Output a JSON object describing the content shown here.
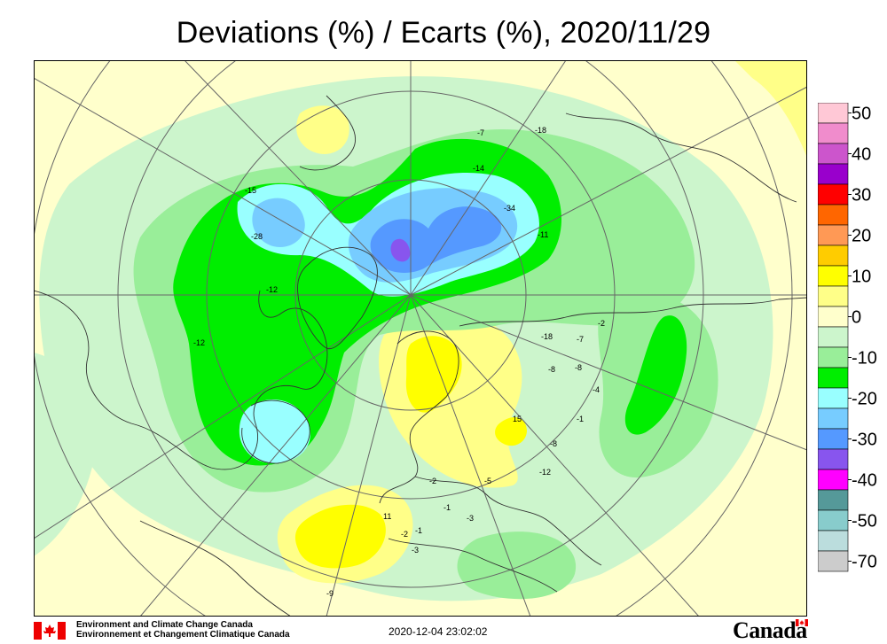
{
  "title": "Deviations (%) / Ecarts (%), 2020/11/29",
  "legend": {
    "levels": [
      {
        "label": "50",
        "color": "#ffc8d6"
      },
      {
        "label": "",
        "color": "#f08ccc"
      },
      {
        "label": "40",
        "color": "#cc55cc"
      },
      {
        "label": "",
        "color": "#9900cc"
      },
      {
        "label": "30",
        "color": "#ff0000"
      },
      {
        "label": "",
        "color": "#ff6600"
      },
      {
        "label": "20",
        "color": "#ff9955"
      },
      {
        "label": "",
        "color": "#ffcc00"
      },
      {
        "label": "10",
        "color": "#ffff00"
      },
      {
        "label": "",
        "color": "#ffff88"
      },
      {
        "label": "0",
        "color": "#ffffcc"
      },
      {
        "label": "",
        "color": "#ccf5cc"
      },
      {
        "label": "-10",
        "color": "#99ee99"
      },
      {
        "label": "",
        "color": "#00ee00"
      },
      {
        "label": "-20",
        "color": "#99ffff"
      },
      {
        "label": "",
        "color": "#77ccff"
      },
      {
        "label": "-30",
        "color": "#5599ff"
      },
      {
        "label": "",
        "color": "#8855ee"
      },
      {
        "label": "-40",
        "color": "#ff00ff"
      },
      {
        "label": "",
        "color": "#559999"
      },
      {
        "label": "-50",
        "color": "#88cccc"
      },
      {
        "label": "",
        "color": "#bbdddd"
      },
      {
        "label": "-70",
        "color": "#cccccc"
      }
    ]
  },
  "contour_labels": [
    "-7",
    "-18",
    "-14",
    "-34",
    "-11",
    "-15",
    "-28",
    "-12",
    "-12",
    "-18",
    "-7",
    "-2",
    "-8",
    "-4",
    "15",
    "-1",
    "-8",
    "-12",
    "-2",
    "-5",
    "-1",
    "11",
    "-3",
    "-2",
    "-1",
    "-3",
    "-9",
    "-8"
  ],
  "footer": {
    "agency_en": "Environment and Climate Change Canada",
    "agency_fr": "Environnement et Changement Climatique Canada",
    "timestamp": "2020-12-04 23:02:02",
    "wordmark": "Canada"
  }
}
